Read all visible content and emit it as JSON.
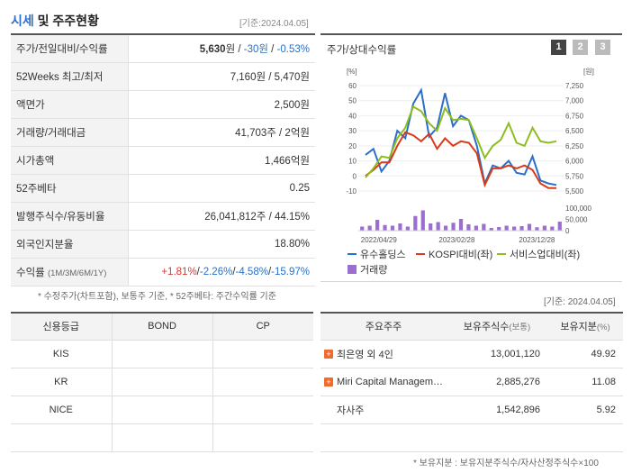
{
  "section": {
    "title_accent": "시세",
    "title_rest": " 및 주주현황",
    "as_of": "[기준:2024.04.05]"
  },
  "quote": {
    "rows": [
      {
        "label": "주가/전일대비/수익률"
      },
      {
        "label": "52Weeks 최고/최저",
        "value": "7,160원 / 5,470원"
      },
      {
        "label": "액면가",
        "value": "2,500원"
      },
      {
        "label": "거래량/거래대금",
        "value": "41,703주 / 2억원"
      },
      {
        "label": "시가총액",
        "value": "1,466억원"
      },
      {
        "label": "52주베타",
        "value": "0.25"
      },
      {
        "label": "발행주식수/유동비율",
        "value": "26,041,812주 / 44.15%"
      },
      {
        "label": "외국인지분율",
        "value": "18.80%"
      },
      {
        "label": "수익률",
        "label_sub": "(1M/3M/6M/1Y)"
      }
    ],
    "price": "5,630",
    "price_unit": "원",
    "sep1": " / ",
    "change": "-30원",
    "sep2": " / ",
    "change_pct": "-0.53%",
    "returns": {
      "r1m": "+1.81%",
      "r3m": "-2.26%",
      "r6m": "-4.58%",
      "r1y": "-15.97%",
      "sep": "/"
    }
  },
  "quote_footnote": "* 수정주가(차트포함), 보통주 기준, * 52주베타: 주간수익률 기준",
  "chart": {
    "title": "주가/상대수익률",
    "buttons": [
      "1",
      "2",
      "3"
    ],
    "as_of": "[기준: 2024.04.05]"
  },
  "chart_data": {
    "type": "line",
    "left_axis_unit": "[%]",
    "right_axis_unit": "[원]",
    "left_ticks": [
      "60",
      "50",
      "40",
      "30",
      "20",
      "10",
      "0",
      "-10"
    ],
    "right_ticks": [
      "7,250",
      "7,000",
      "6,750",
      "6,500",
      "6,250",
      "6,000",
      "5,750",
      "5,500"
    ],
    "volume_ticks": [
      "100,000",
      "50,000",
      "0"
    ],
    "x_labels": [
      "2022/04/29",
      "2023/02/28",
      "2023/12/28"
    ],
    "ylim": [
      -10,
      60
    ],
    "vol_max": 100000,
    "series": [
      {
        "name": "유수홀딩스",
        "color": "#2a6fc9",
        "values": [
          14,
          18,
          3,
          10,
          30,
          25,
          48,
          57,
          26,
          32,
          55,
          33,
          40,
          37,
          20,
          -5,
          7,
          5,
          10,
          2,
          1,
          13,
          -3,
          -5,
          -6
        ]
      },
      {
        "name": "KOSPI대비(좌)",
        "color": "#d83a1a",
        "values": [
          0,
          4,
          9,
          9,
          20,
          29,
          27,
          23,
          28,
          18,
          25,
          20,
          23,
          22,
          15,
          -6,
          5,
          5,
          7,
          5,
          7,
          4,
          -5,
          -8,
          -8
        ]
      },
      {
        "name": "서비스업대비(좌)",
        "color": "#8dbd1f",
        "values": [
          -1,
          5,
          13,
          12,
          25,
          32,
          46,
          43,
          35,
          30,
          45,
          37,
          38,
          37,
          25,
          12,
          20,
          24,
          35,
          22,
          20,
          32,
          23,
          22,
          23
        ]
      }
    ],
    "volume": {
      "name": "거래량",
      "color": "#9b6fd0",
      "values": [
        18000,
        22000,
        48000,
        25000,
        22000,
        32000,
        18000,
        65000,
        90000,
        32000,
        38000,
        22000,
        35000,
        52000,
        28000,
        22000,
        30000,
        12000,
        16000,
        22000,
        18000,
        20000,
        30000,
        15000,
        22000,
        18000,
        40000
      ]
    }
  },
  "credit": {
    "headers": [
      "신용등급",
      "BOND",
      "CP"
    ],
    "rows": [
      [
        "KIS",
        "",
        ""
      ],
      [
        "KR",
        "",
        ""
      ],
      [
        "NICE",
        "",
        ""
      ],
      [
        "",
        "",
        ""
      ]
    ]
  },
  "holders": {
    "headers": {
      "name": "주요주주",
      "shares": "보유주식수",
      "shares_unit": "(보통)",
      "pct": "보유지분",
      "pct_unit": "(%)"
    },
    "rows": [
      {
        "name": "최은영 외 4인",
        "expandable": true,
        "shares": "13,001,120",
        "pct": "49.92"
      },
      {
        "name": "Miri Capital Managem…",
        "expandable": true,
        "shares": "2,885,276",
        "pct": "11.08"
      },
      {
        "name": "자사주",
        "expandable": false,
        "shares": "1,542,896",
        "pct": "5.92"
      }
    ],
    "footnote": "* 보유지분 : 보유지분주식수/자사산정주식수×100"
  }
}
